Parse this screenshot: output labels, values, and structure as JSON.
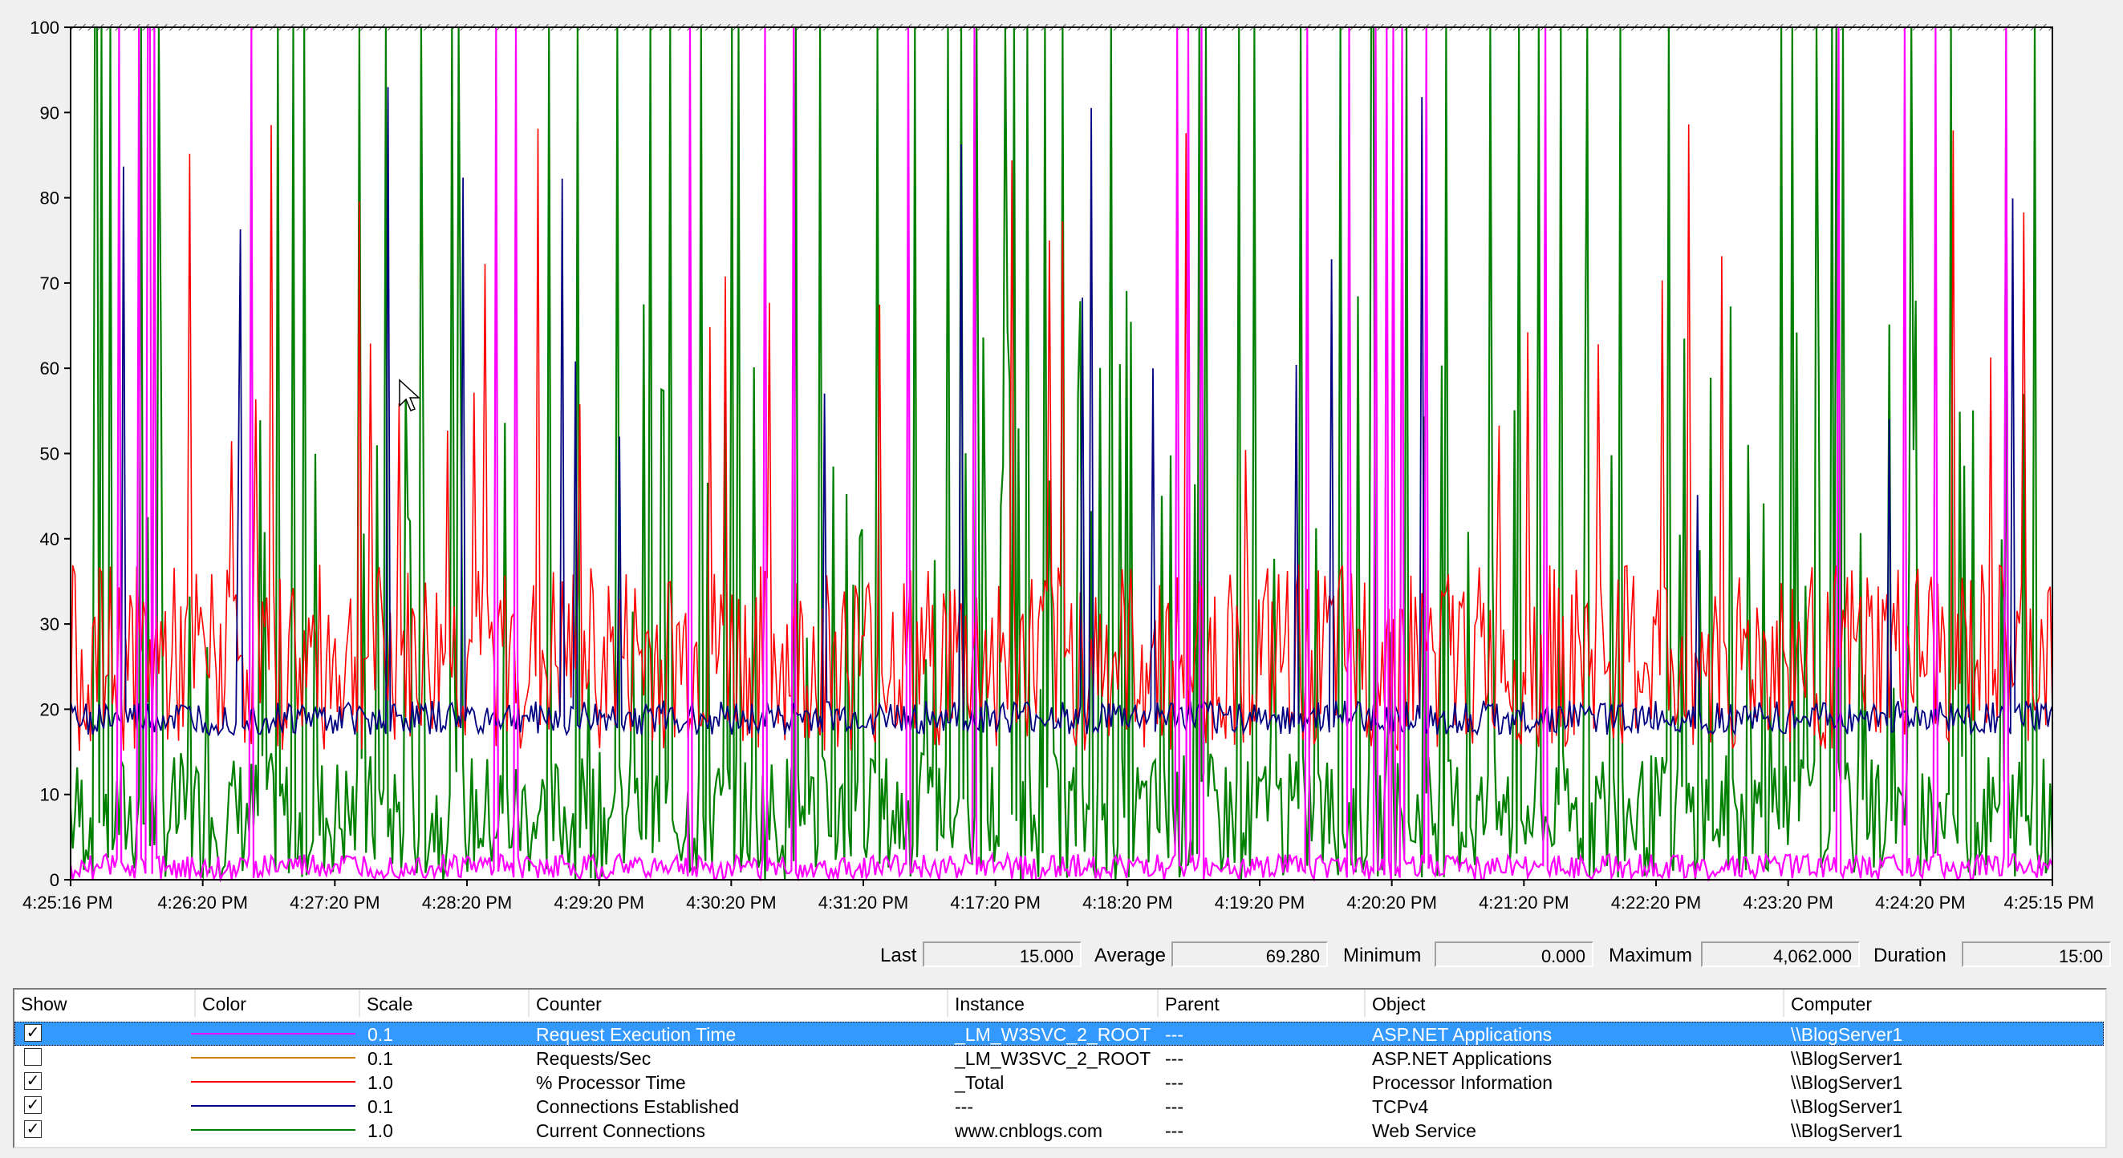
{
  "chart_data": {
    "type": "line",
    "ylim": [
      0,
      100
    ],
    "y_ticks": [
      "100",
      "90",
      "80",
      "70",
      "60",
      "50",
      "40",
      "30",
      "20",
      "10",
      "0"
    ],
    "x_ticks": [
      "4:25:16 PM",
      "4:26:20 PM",
      "4:27:20 PM",
      "4:28:20 PM",
      "4:29:20 PM",
      "4:30:20 PM",
      "4:31:20 PM",
      "4:17:20 PM",
      "4:18:20 PM",
      "4:19:20 PM",
      "4:20:20 PM",
      "4:21:20 PM",
      "4:22:20 PM",
      "4:23:20 PM",
      "4:24:20 PM",
      "4:25:15 PM"
    ],
    "grid": false,
    "series_colors": {
      "request_execution_time": "#ff00ff",
      "processor_time": "#ff0000",
      "connections_established": "#000080",
      "current_connections": "#008000"
    }
  },
  "stats": {
    "last_label": "Last",
    "last_value": "15.000",
    "average_label": "Average",
    "average_value": "69.280",
    "minimum_label": "Minimum",
    "minimum_value": "0.000",
    "maximum_label": "Maximum",
    "maximum_value": "4,062.000",
    "duration_label": "Duration",
    "duration_value": "15:00"
  },
  "legend": {
    "headers": [
      "Show",
      "Color",
      "Scale",
      "Counter",
      "Instance",
      "Parent",
      "Object",
      "Computer"
    ],
    "rows": [
      {
        "show": true,
        "color": "#ff00ff",
        "scale": "0.1",
        "counter": "Request Execution Time",
        "instance": "_LM_W3SVC_2_ROOT",
        "parent": "---",
        "object": "ASP.NET Applications",
        "computer": "\\\\BlogServer1",
        "selected": true
      },
      {
        "show": false,
        "color": "#d08000",
        "scale": "0.1",
        "counter": "Requests/Sec",
        "instance": "_LM_W3SVC_2_ROOT",
        "parent": "---",
        "object": "ASP.NET Applications",
        "computer": "\\\\BlogServer1",
        "selected": false
      },
      {
        "show": true,
        "color": "#ff0000",
        "scale": "1.0",
        "counter": "% Processor Time",
        "instance": "_Total",
        "parent": "---",
        "object": "Processor Information",
        "computer": "\\\\BlogServer1",
        "selected": false
      },
      {
        "show": true,
        "color": "#000080",
        "scale": "0.1",
        "counter": "Connections Established",
        "instance": "---",
        "parent": "---",
        "object": "TCPv4",
        "computer": "\\\\BlogServer1",
        "selected": false
      },
      {
        "show": true,
        "color": "#008000",
        "scale": "1.0",
        "counter": "Current Connections",
        "instance": "www.cnblogs.com",
        "parent": "---",
        "object": "Web Service",
        "computer": "\\\\BlogServer1",
        "selected": false
      }
    ]
  }
}
